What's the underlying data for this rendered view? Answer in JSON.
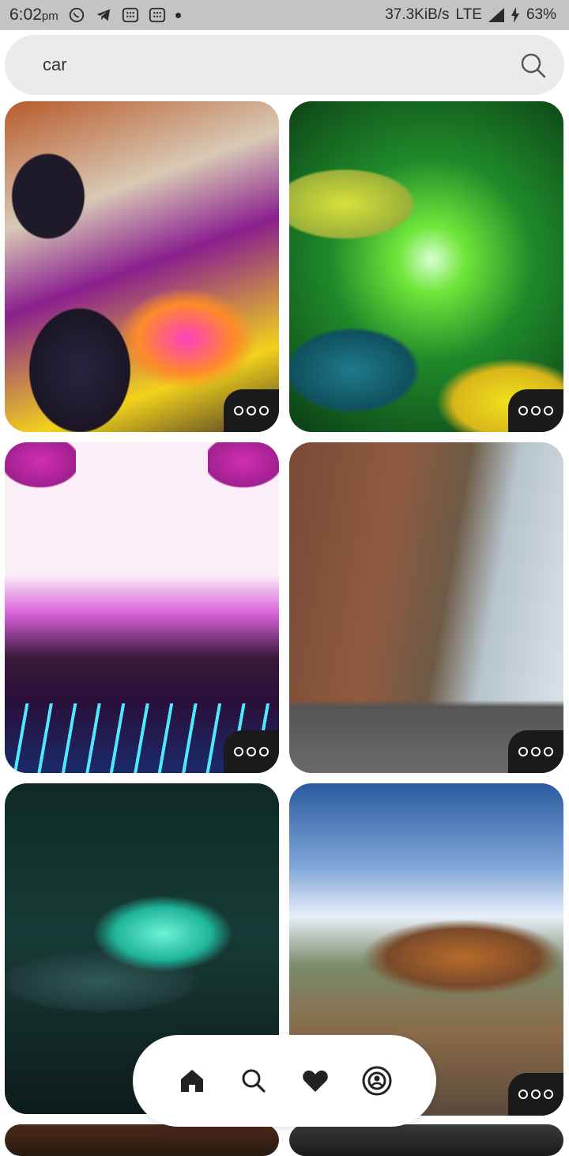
{
  "status_bar": {
    "time": "6:02",
    "ampm": "pm",
    "net_speed": "37.3KiB/s",
    "network": "LTE",
    "battery": "63%"
  },
  "search": {
    "value": "car"
  },
  "results": [
    {
      "tile": "retro racing monster truck"
    },
    {
      "tile": "race cars with green lightning"
    },
    {
      "tile": "synthwave car under palm trees"
    },
    {
      "tile": "city street with old car"
    },
    {
      "tile": "neon lit car in foggy street"
    },
    {
      "tile": "rusty ship on pebble beach"
    }
  ],
  "bottom_nav": {
    "items": [
      "home-icon",
      "search-icon",
      "heart-icon",
      "profile-icon"
    ]
  },
  "colors": {
    "status_bar_bg": "#c4c4c4",
    "search_bg": "#ebebeb",
    "more_button_bg": "#1a1a1a"
  }
}
